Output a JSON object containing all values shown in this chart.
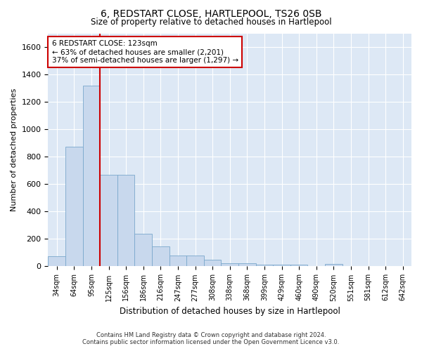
{
  "title": "6, REDSTART CLOSE, HARTLEPOOL, TS26 0SB",
  "subtitle": "Size of property relative to detached houses in Hartlepool",
  "xlabel": "Distribution of detached houses by size in Hartlepool",
  "ylabel": "Number of detached properties",
  "bar_labels": [
    "34sqm",
    "64sqm",
    "95sqm",
    "125sqm",
    "156sqm",
    "186sqm",
    "216sqm",
    "247sqm",
    "277sqm",
    "308sqm",
    "338sqm",
    "368sqm",
    "399sqm",
    "429sqm",
    "460sqm",
    "490sqm",
    "520sqm",
    "551sqm",
    "581sqm",
    "612sqm",
    "642sqm"
  ],
  "bar_values": [
    75,
    875,
    1320,
    670,
    670,
    240,
    145,
    80,
    80,
    48,
    25,
    25,
    15,
    15,
    10,
    0,
    18,
    0,
    0,
    0,
    0
  ],
  "bar_color": "#c8d8ed",
  "bar_edge_color": "#7aa8cc",
  "vline_color": "#cc0000",
  "vline_pos": 2.5,
  "ylim": [
    0,
    1700
  ],
  "yticks": [
    0,
    200,
    400,
    600,
    800,
    1000,
    1200,
    1400,
    1600
  ],
  "annotation_text": "6 REDSTART CLOSE: 123sqm\n← 63% of detached houses are smaller (2,201)\n37% of semi-detached houses are larger (1,297) →",
  "annotation_box_color": "#ffffff",
  "annotation_box_edge": "#cc0000",
  "background_color": "#dde8f5",
  "grid_color": "#ffffff",
  "footer_line1": "Contains HM Land Registry data © Crown copyright and database right 2024.",
  "footer_line2": "Contains public sector information licensed under the Open Government Licence v3.0."
}
